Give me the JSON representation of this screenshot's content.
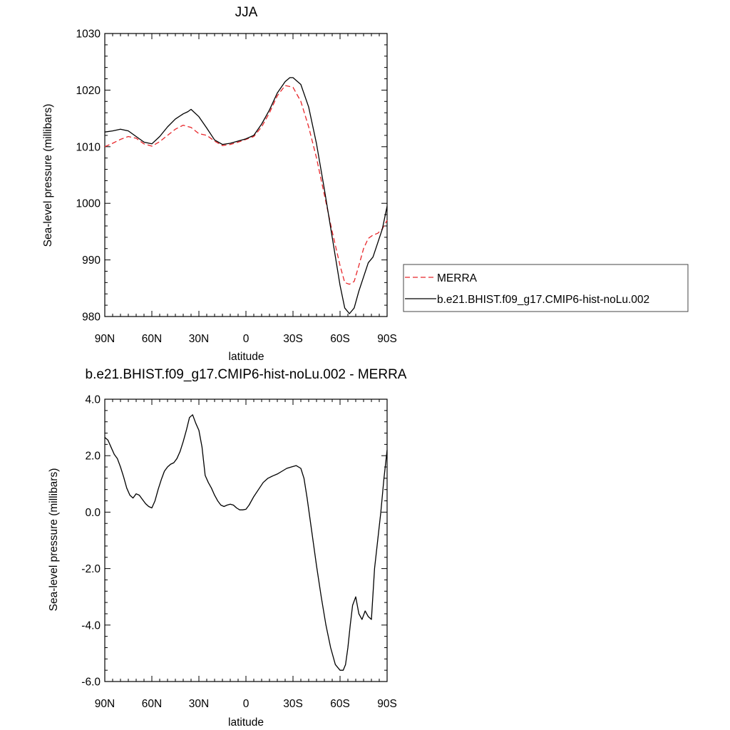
{
  "colors": {
    "merra": "#e8262a",
    "model": "#000000",
    "frame": "#000000"
  },
  "legend": {
    "items": [
      {
        "label": "MERRA",
        "style": "dashed",
        "color": "#e8262a"
      },
      {
        "label": "b.e21.BHIST.f09_g17.CMIP6-hist-noLu.002",
        "style": "solid",
        "color": "#000000"
      }
    ]
  },
  "chart_data": [
    {
      "type": "line",
      "title": "JJA",
      "xlabel": "latitude",
      "ylabel": "Sea-level pressure (millibars)",
      "xticks": [
        "90N",
        "60N",
        "30N",
        "0",
        "30S",
        "60S",
        "90S"
      ],
      "yticks": [
        "980",
        "990",
        "1000",
        "1010",
        "1020",
        "1030"
      ],
      "xlim": [
        90,
        -90
      ],
      "ylim": [
        980,
        1030
      ],
      "grid": false,
      "legend_position": "right",
      "series": [
        {
          "name": "MERRA",
          "style": "dashed",
          "x": [
            90,
            85,
            80,
            75,
            70,
            65,
            60,
            55,
            50,
            45,
            40,
            35,
            30,
            25,
            20,
            15,
            10,
            5,
            0,
            -5,
            -10,
            -15,
            -20,
            -25,
            -30,
            -35,
            -40,
            -45,
            -50,
            -55,
            -60,
            -63,
            -66,
            -69,
            -72,
            -75,
            -78,
            -81,
            -84,
            -87,
            -90
          ],
          "y": [
            1010.0,
            1010.6,
            1011.3,
            1011.8,
            1011.5,
            1010.5,
            1010.1,
            1010.9,
            1012.0,
            1013.1,
            1013.8,
            1013.4,
            1012.3,
            1012.0,
            1011.0,
            1010.2,
            1010.4,
            1010.8,
            1011.3,
            1011.8,
            1013.5,
            1016.0,
            1019.0,
            1020.8,
            1020.5,
            1018.0,
            1013.5,
            1008.0,
            1001.5,
            995.0,
            989.0,
            986.0,
            985.7,
            986.2,
            989.0,
            992.0,
            993.8,
            994.4,
            994.7,
            995.5,
            997.0
          ]
        },
        {
          "name": "b.e21.BHIST.f09_g17.CMIP6-hist-noLu.002",
          "style": "solid",
          "x": [
            90,
            85,
            80,
            75,
            70,
            65,
            60,
            55,
            50,
            45,
            40,
            37,
            35,
            30,
            25,
            20,
            15,
            10,
            5,
            0,
            -5,
            -10,
            -15,
            -20,
            -25,
            -28,
            -30,
            -35,
            -40,
            -45,
            -50,
            -55,
            -60,
            -63,
            -66,
            -69,
            -72,
            -75,
            -78,
            -81,
            -84,
            -87,
            -90
          ],
          "y": [
            1012.6,
            1012.8,
            1013.1,
            1012.8,
            1011.8,
            1010.8,
            1010.5,
            1011.8,
            1013.5,
            1014.9,
            1015.8,
            1016.2,
            1016.6,
            1015.3,
            1013.3,
            1011.2,
            1010.4,
            1010.6,
            1011.0,
            1011.4,
            1012.0,
            1014.0,
            1016.5,
            1019.5,
            1021.5,
            1022.2,
            1022.2,
            1021.0,
            1017.0,
            1010.5,
            1002.5,
            994.0,
            985.5,
            981.5,
            980.5,
            981.5,
            984.5,
            987.0,
            989.5,
            990.5,
            993.0,
            995.5,
            999.5
          ]
        }
      ]
    },
    {
      "type": "line",
      "title": "b.e21.BHIST.f09_g17.CMIP6-hist-noLu.002 - MERRA",
      "xlabel": "latitude",
      "ylabel": "Sea-level pressure (millibars)",
      "xticks": [
        "90N",
        "60N",
        "30N",
        "0",
        "30S",
        "60S",
        "90S"
      ],
      "yticks": [
        "-6.0",
        "-4.0",
        "-2.0",
        "0.0",
        "2.0",
        "4.0"
      ],
      "xlim": [
        90,
        -90
      ],
      "ylim": [
        -6,
        4
      ],
      "grid": false,
      "series": [
        {
          "style": "solid",
          "x": [
            90,
            88,
            86,
            84,
            82,
            80,
            78,
            76,
            74,
            72,
            70,
            68,
            66,
            64,
            62,
            60,
            58,
            56,
            54,
            52,
            50,
            48,
            46,
            44,
            42,
            40,
            38,
            36,
            34,
            32,
            30,
            28,
            26,
            24,
            22,
            20,
            18,
            16,
            14,
            12,
            10,
            8,
            6,
            4,
            2,
            0,
            -2,
            -5,
            -8,
            -11,
            -14,
            -17,
            -20,
            -23,
            -26,
            -29,
            -32,
            -35,
            -37,
            -39,
            -42,
            -45,
            -48,
            -51,
            -54,
            -57,
            -60,
            -62,
            -63.5,
            -65,
            -66.5,
            -68,
            -70,
            -72,
            -74,
            -76,
            -78,
            -80,
            -82,
            -84,
            -86,
            -88,
            -90
          ],
          "y": [
            2.65,
            2.55,
            2.3,
            2.05,
            1.9,
            1.6,
            1.25,
            0.85,
            0.6,
            0.5,
            0.65,
            0.6,
            0.45,
            0.3,
            0.2,
            0.15,
            0.4,
            0.8,
            1.15,
            1.45,
            1.6,
            1.7,
            1.75,
            1.9,
            2.15,
            2.5,
            2.9,
            3.35,
            3.45,
            3.15,
            2.9,
            2.3,
            1.3,
            1.05,
            0.85,
            0.6,
            0.4,
            0.25,
            0.2,
            0.25,
            0.28,
            0.25,
            0.15,
            0.08,
            0.08,
            0.1,
            0.25,
            0.55,
            0.8,
            1.05,
            1.2,
            1.28,
            1.35,
            1.45,
            1.55,
            1.6,
            1.65,
            1.55,
            1.2,
            0.5,
            -0.7,
            -1.9,
            -3.0,
            -4.0,
            -4.8,
            -5.4,
            -5.6,
            -5.6,
            -5.4,
            -4.8,
            -4.0,
            -3.3,
            -3.0,
            -3.6,
            -3.8,
            -3.5,
            -3.7,
            -3.8,
            -2.0,
            -1.0,
            0.0,
            1.2,
            2.2
          ]
        }
      ]
    }
  ]
}
